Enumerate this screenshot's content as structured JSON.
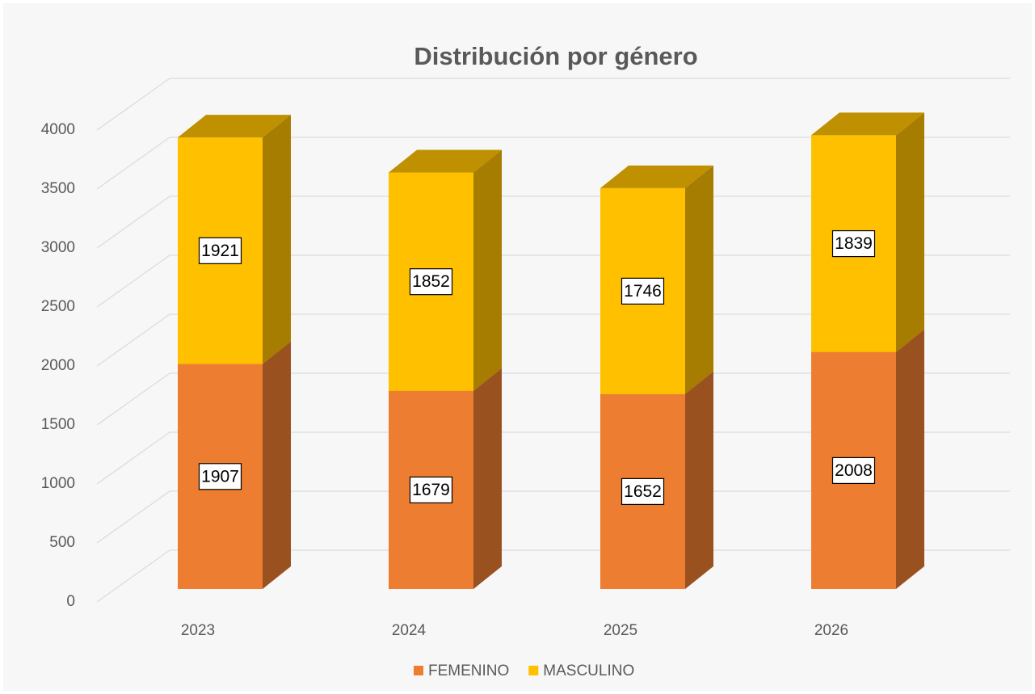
{
  "chart_data": {
    "type": "bar3d_stacked",
    "title": "Distribución por género",
    "categories": [
      "2023",
      "2024",
      "2025",
      "2026"
    ],
    "series": [
      {
        "name": "FEMENINO",
        "color": "#ed7d31",
        "values": [
          1907,
          1679,
          1652,
          2008
        ]
      },
      {
        "name": "MASCULINO",
        "color": "#ffc000",
        "values": [
          1921,
          1852,
          1746,
          1839
        ]
      }
    ],
    "ylim": [
      0,
      4000
    ],
    "yticks": [
      0,
      500,
      1000,
      1500,
      2000,
      2500,
      3000,
      3500,
      4000
    ],
    "grid": true,
    "legend": "bottom"
  }
}
